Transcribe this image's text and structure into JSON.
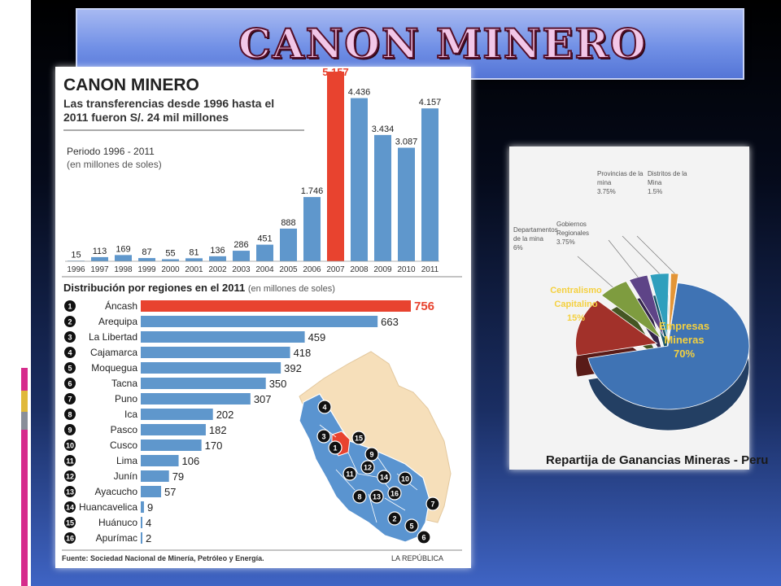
{
  "slide": {
    "title": "CANON MINERO",
    "colors": {
      "bar_blue": "#5f97cc",
      "bar_red": "#e8432f",
      "map_region": "#5a94d0",
      "map_neighbor": "#f6dfba"
    }
  },
  "infographic": {
    "heading": "CANON MINERO",
    "subheading_line1": "Las transferencias desde 1996 hasta el",
    "subheading_line2": "2011 fueron S/. 24 mil millones",
    "period_label": "Periodo 1996 - 2011",
    "units_label": "(en millones de soles)",
    "regions_title": "Distribución por regiones en el 2011",
    "regions_units": "(en millones de soles)",
    "source_label": "Fuente:",
    "source_text": "Sociedad Nacional de Minería, Petróleo y Energía.",
    "publisher": "LA REPÚBLICA",
    "map_markers": [
      "4",
      "3",
      "1",
      "15",
      "9",
      "12",
      "11",
      "14",
      "10",
      "8",
      "13",
      "16",
      "7",
      "2",
      "5",
      "6"
    ]
  },
  "pie": {
    "caption": "Repartija de Ganancias Mineras - Peru"
  },
  "chart_data": [
    {
      "type": "bar",
      "title": "CANON MINERO",
      "categories": [
        "1996",
        "1997",
        "1998",
        "1999",
        "2000",
        "2001",
        "2002",
        "2003",
        "2004",
        "2005",
        "2006",
        "2007",
        "2008",
        "2009",
        "2010",
        "2011"
      ],
      "values": [
        15,
        113,
        169,
        87,
        55,
        81,
        136,
        286,
        451,
        888,
        1746,
        5157,
        4436,
        3434,
        3087,
        4157
      ],
      "value_labels": [
        "15",
        "113",
        "169",
        "87",
        "55",
        "81",
        "136",
        "286",
        "451",
        "888",
        "1.746",
        "5,157",
        "4.436",
        "3.434",
        "3.087",
        "4.157"
      ],
      "highlight": "2007"
    },
    {
      "type": "bar",
      "orientation": "horizontal",
      "title": "Distribución por regiones en el 2011",
      "ranks": [
        "1",
        "2",
        "3",
        "4",
        "5",
        "6",
        "7",
        "8",
        "9",
        "10",
        "11",
        "12",
        "13",
        "14",
        "15",
        "16"
      ],
      "categories": [
        "Áncash",
        "Arequipa",
        "La Libertad",
        "Cajamarca",
        "Moquegua",
        "Tacna",
        "Puno",
        "Ica",
        "Pasco",
        "Cusco",
        "Lima",
        "Junín",
        "Ayacucho",
        "Huancavelica",
        "Huánuco",
        "Apurímac"
      ],
      "values": [
        756,
        663,
        459,
        418,
        392,
        350,
        307,
        202,
        182,
        170,
        106,
        79,
        57,
        9,
        4,
        2
      ],
      "highlight": "Áncash"
    },
    {
      "type": "pie",
      "title": "Repartija de Ganancias Mineras - Peru",
      "slices": [
        {
          "label_lines": [
            "Empresas",
            "Mineras",
            "70%"
          ],
          "value": 70,
          "color": "#3f73b4"
        },
        {
          "label_lines": [
            "Centralismo",
            "Capitalino",
            "15%"
          ],
          "value": 15,
          "color": "#a2312a"
        },
        {
          "label_lines": [
            "Departamentos",
            "de la mina",
            "6%"
          ],
          "value": 6,
          "color": "#7e9c3f"
        },
        {
          "label_lines": [
            "Gobiernos",
            "Regionales",
            "3.75%"
          ],
          "value": 3.75,
          "color": "#5e4487"
        },
        {
          "label_lines": [
            "Provincias de la",
            "mina",
            "3.75%"
          ],
          "value": 3.75,
          "color": "#2f9fbd"
        },
        {
          "label_lines": [
            "Distritos de la",
            "Mina",
            "1.5%"
          ],
          "value": 1.5,
          "color": "#e39537"
        }
      ]
    }
  ]
}
